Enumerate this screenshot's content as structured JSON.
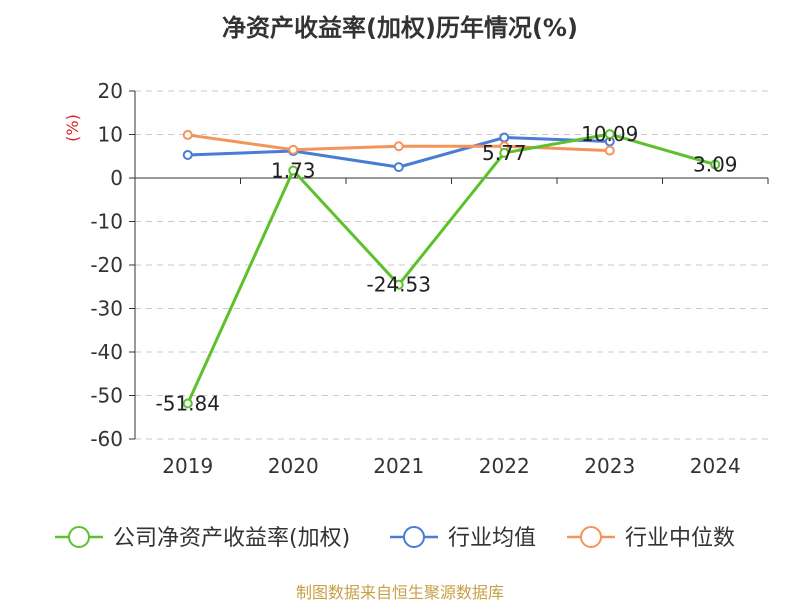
{
  "chart_data": {
    "type": "line",
    "title": "净资产收益率(加权)历年情况(%)",
    "ylabel": "(%)",
    "categories": [
      "2019",
      "2020",
      "2021",
      "2022",
      "2023",
      "2024"
    ],
    "ylim": [
      -60,
      20
    ],
    "yticks": [
      20,
      10,
      0,
      -10,
      -20,
      -30,
      -40,
      -50,
      -60
    ],
    "grid": true,
    "legend_position": "bottom",
    "series": [
      {
        "name": "公司净资产收益率(加权)",
        "color": "#5cc12a",
        "values": [
          -51.84,
          1.73,
          -24.53,
          5.77,
          10.09,
          3.09
        ],
        "labels": [
          "-51.84",
          "1.73",
          "-24.53",
          "5.77",
          "10.09",
          "3.09"
        ]
      },
      {
        "name": "行业均值",
        "color": "#4a7bd6",
        "values": [
          5.3,
          6.2,
          2.5,
          9.3,
          8.4,
          null
        ]
      },
      {
        "name": "行业中位数",
        "color": "#f4935a",
        "values": [
          9.9,
          6.5,
          7.3,
          7.3,
          6.3,
          null
        ]
      }
    ]
  },
  "source": "制图数据来自恒生聚源数据库"
}
